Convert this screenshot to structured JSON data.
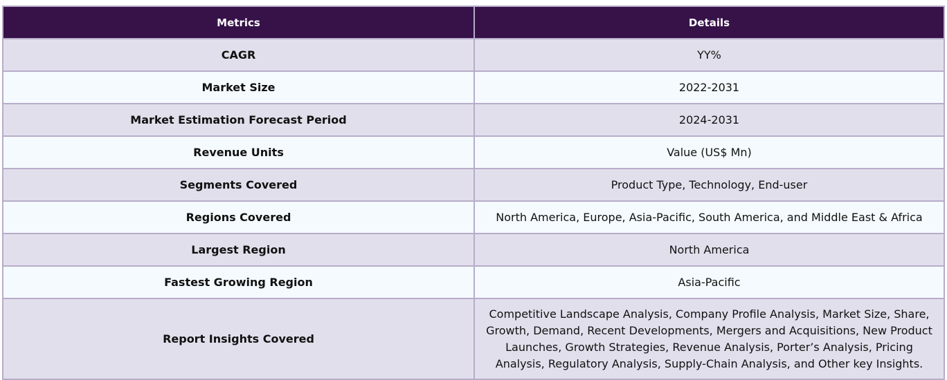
{
  "table": {
    "headers": {
      "metric": "Metrics",
      "details": "Details"
    },
    "rows": [
      {
        "metric": "CAGR",
        "details": "YY%"
      },
      {
        "metric": "Market Size",
        "details": "2022-2031"
      },
      {
        "metric": "Market Estimation Forecast Period",
        "details": "2024-2031"
      },
      {
        "metric": "Revenue Units",
        "details": "Value (US$ Mn)"
      },
      {
        "metric": "Segments Covered",
        "details": "Product Type, Technology, End-user"
      },
      {
        "metric": "Regions Covered",
        "details": "North America, Europe, Asia-Pacific, South America, and Middle East & Africa"
      },
      {
        "metric": "Largest Region",
        "details": "North America"
      },
      {
        "metric": "Fastest Growing Region",
        "details": "Asia-Pacific"
      },
      {
        "metric": "Report Insights Covered",
        "details": "Competitive Landscape Analysis, Company Profile Analysis, Market Size, Share, Growth, Demand, Recent Developments, Mergers and Acquisitions, New Product Launches, Growth Strategies, Revenue Analysis, Porter’s Analysis, Pricing Analysis, Regulatory Analysis, Supply-Chain Analysis, and Other key Insights."
      }
    ]
  },
  "colors": {
    "header_bg": "#371249",
    "header_text": "#ffffff",
    "row_odd_bg": "#e2dfec",
    "row_even_bg": "#f4fafd",
    "border": "#b7acc9"
  }
}
